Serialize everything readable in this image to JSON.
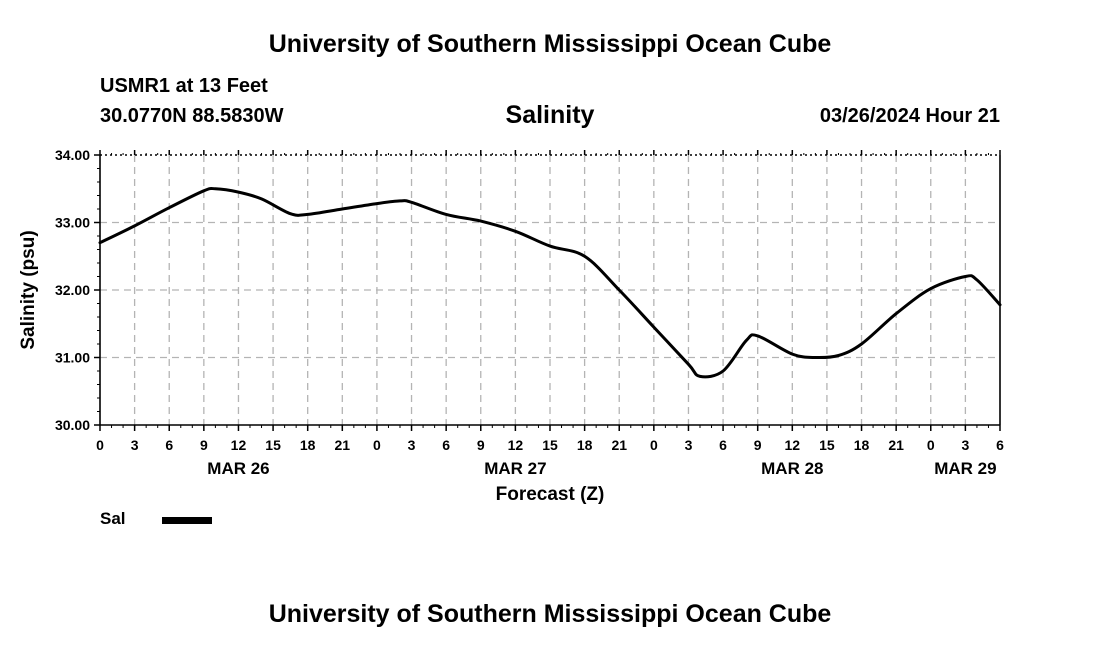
{
  "header": {
    "title": "University of Southern Mississippi Ocean Cube",
    "station": "USMR1 at 13 Feet",
    "coords": "30.0770N  88.5830W",
    "subtitle": "Salinity",
    "timestamp": "03/26/2024 Hour 21"
  },
  "footer": {
    "title": "University of Southern Mississippi Ocean Cube"
  },
  "legend": {
    "label": "Sal"
  },
  "colors": {
    "line": "#000000",
    "grid": "#b4b4b4",
    "frame": "#000000"
  },
  "chart_data": {
    "type": "line",
    "title": "Salinity",
    "xlabel": "Forecast (Z)",
    "ylabel": "Salinity (psu)",
    "ylim": [
      30.0,
      34.0
    ],
    "xlim": [
      0,
      78
    ],
    "x_unit": "hours from 00Z MAR 26",
    "y_ticks": [
      "30.00",
      "31.00",
      "32.00",
      "33.00",
      "34.00"
    ],
    "y_tick_values": [
      30,
      31,
      32,
      33,
      34
    ],
    "x_tick_hours": [
      0,
      3,
      6,
      9,
      12,
      15,
      18,
      21,
      24,
      27,
      30,
      33,
      36,
      39,
      42,
      45,
      48,
      51,
      54,
      57,
      60,
      63,
      66,
      69,
      72,
      75,
      78
    ],
    "x_tick_labels": [
      "0",
      "3",
      "6",
      "9",
      "12",
      "15",
      "18",
      "21",
      "0",
      "3",
      "6",
      "9",
      "12",
      "15",
      "18",
      "21",
      "0",
      "3",
      "6",
      "9",
      "12",
      "15",
      "18",
      "21",
      "0",
      "3",
      "6"
    ],
    "day_labels": [
      {
        "hour": 12,
        "label": "MAR 26"
      },
      {
        "hour": 36,
        "label": "MAR 27"
      },
      {
        "hour": 60,
        "label": "MAR 28"
      },
      {
        "hour": 75,
        "label": "MAR 29"
      }
    ],
    "series": [
      {
        "name": "Sal",
        "x": [
          0,
          3,
          6,
          9,
          10,
          12,
          14,
          16.5,
          18,
          21,
          24,
          26,
          27,
          30,
          33,
          36,
          39,
          42,
          45,
          48,
          51,
          52,
          54,
          56,
          57,
          60,
          62,
          64,
          66,
          69,
          72,
          75,
          76,
          78
        ],
        "y": [
          32.7,
          32.95,
          33.22,
          33.47,
          33.5,
          33.45,
          33.35,
          33.13,
          33.12,
          33.2,
          33.28,
          33.32,
          33.3,
          33.12,
          33.02,
          32.87,
          32.65,
          32.5,
          32.0,
          31.45,
          30.9,
          30.72,
          30.8,
          31.25,
          31.32,
          31.05,
          31.0,
          31.03,
          31.2,
          31.65,
          32.02,
          32.2,
          32.15,
          31.78
        ]
      }
    ]
  }
}
